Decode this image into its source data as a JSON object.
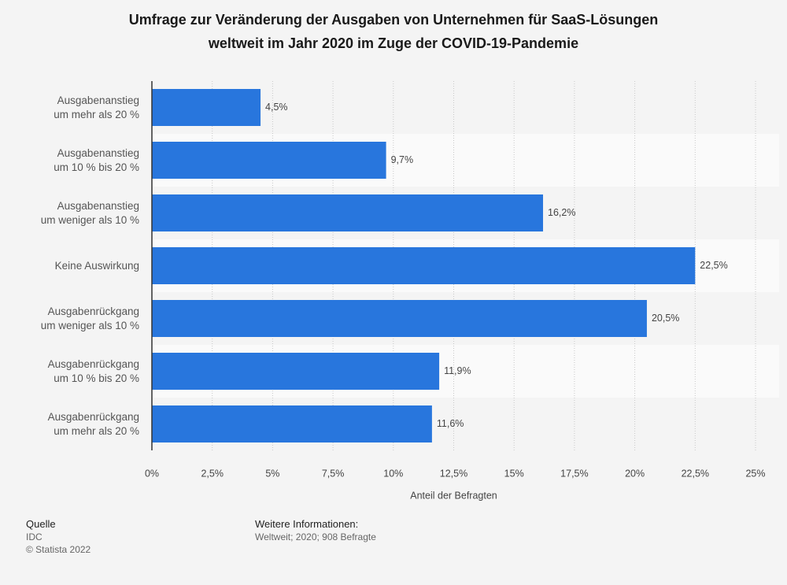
{
  "chart_data": {
    "type": "hbar",
    "title": "Umfrage zur Veränderung der Ausgaben von Unternehmen für SaaS-Lösungen\nweltweit im Jahr 2020 im Zuge der COVID-19-Pandemie",
    "categories": [
      "Ausgabenanstieg\num mehr als 20 %",
      "Ausgabenanstieg\num 10 % bis 20 %",
      "Ausgabenanstieg\num weniger als 10 %",
      "Keine Auswirkung",
      "Ausgabenrückgang\num weniger als 10 %",
      "Ausgabenrückgang\num 10 % bis 20 %",
      "Ausgabenrückgang\num mehr als 20 %"
    ],
    "values": [
      4.5,
      9.7,
      16.2,
      22.5,
      20.5,
      11.9,
      11.6
    ],
    "value_labels": [
      "4,5%",
      "9,7%",
      "16,2%",
      "22,5%",
      "20,5%",
      "11,9%",
      "11,6%"
    ],
    "color": "#2876dd",
    "xlim": [
      0,
      25
    ],
    "xticks": [
      {
        "value": 0,
        "label": "0%"
      },
      {
        "value": 2.5,
        "label": "2,5%"
      },
      {
        "value": 5,
        "label": "5%"
      },
      {
        "value": 7.5,
        "label": "7,5%"
      },
      {
        "value": 10,
        "label": "10%"
      },
      {
        "value": 12.5,
        "label": "12,5%"
      },
      {
        "value": 15,
        "label": "15%"
      },
      {
        "value": 17.5,
        "label": "17,5%"
      },
      {
        "value": 20,
        "label": "20%"
      },
      {
        "value": 22.5,
        "label": "22,5%"
      },
      {
        "value": 25,
        "label": "25%"
      }
    ],
    "xlabel": "Anteil der Befragten",
    "grid": true
  },
  "footer": {
    "source_title": "Quelle",
    "source": "IDC",
    "copyright": "© Statista 2022",
    "info_title": "Weitere Informationen:",
    "info": "Weltweit; 2020; 908 Befragte"
  }
}
